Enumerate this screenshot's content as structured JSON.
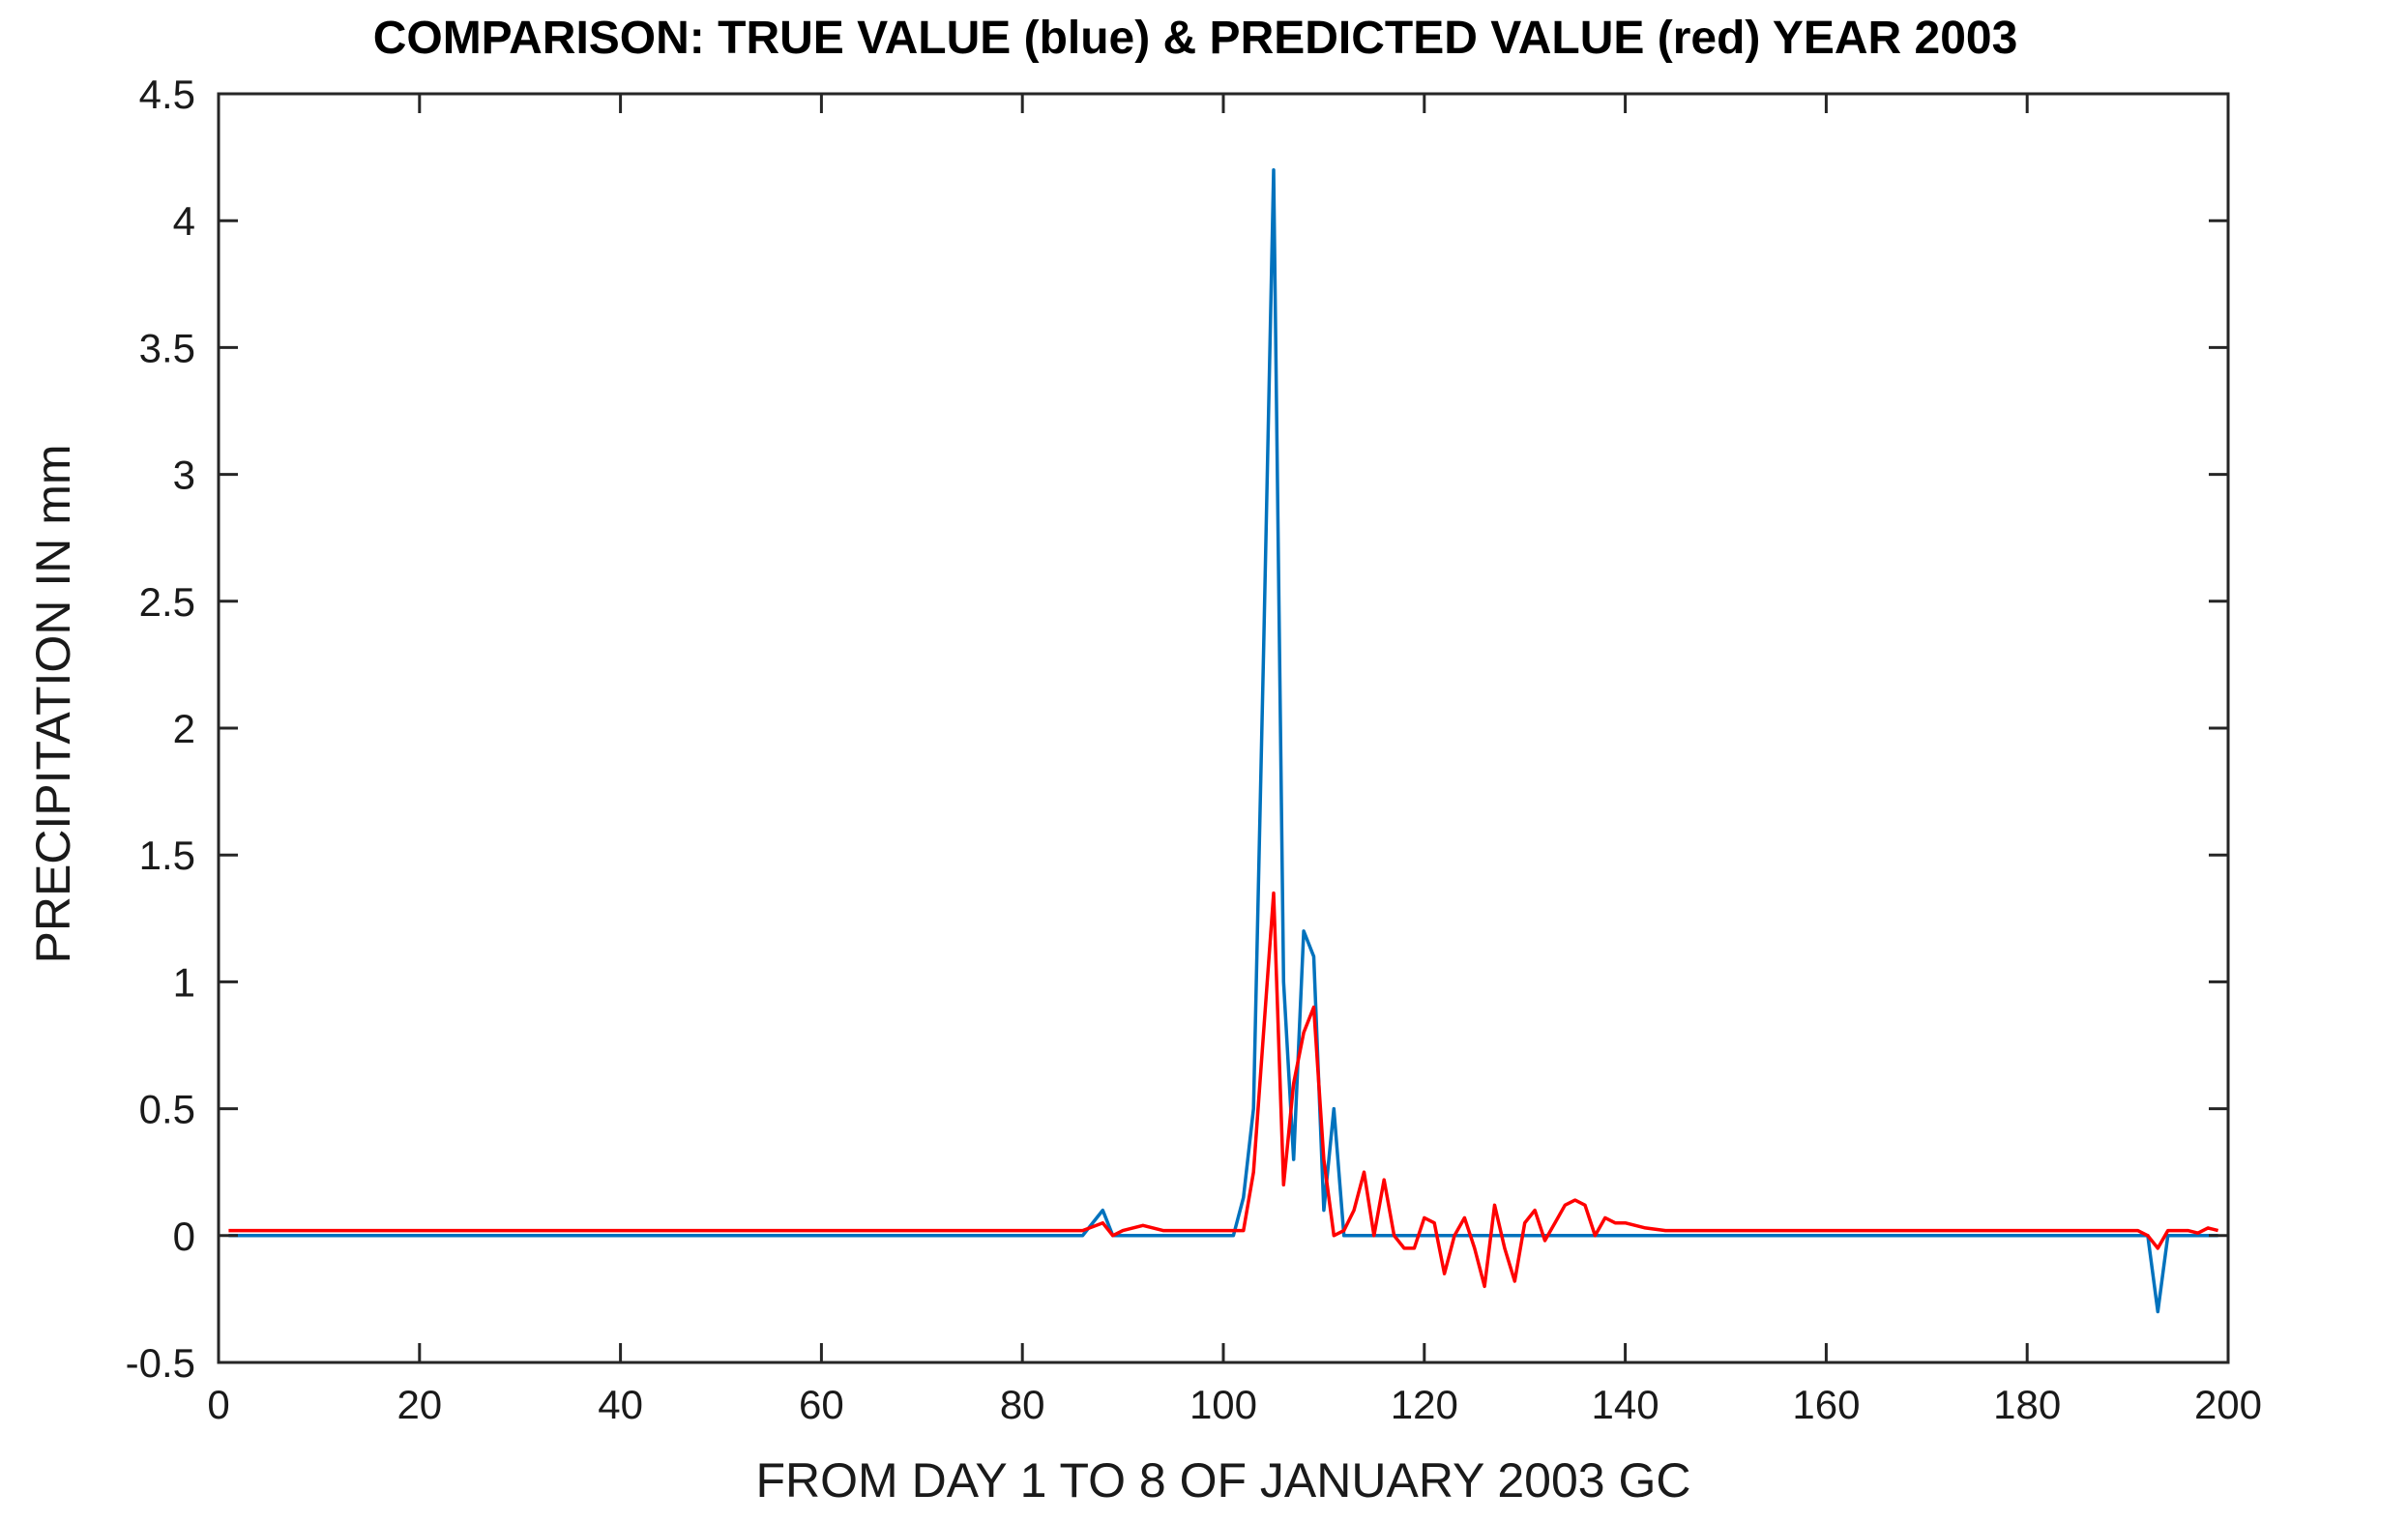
{
  "chart_data": {
    "type": "line",
    "title": "COMPARISON: TRUE VALUE (blue) & PREDICTED VALUE (red) YEAR 2003",
    "xlabel": "FROM DAY 1 TO 8 OF JANUARY 2003 GC",
    "ylabel": "PRECIPITATION IN mm",
    "xlim": [
      0,
      200
    ],
    "ylim": [
      -0.5,
      4.5
    ],
    "xticks": [
      "0",
      "20",
      "40",
      "60",
      "80",
      "100",
      "120",
      "140",
      "160",
      "180",
      "200"
    ],
    "yticks": [
      "-0.5",
      "0",
      "0.5",
      "1",
      "1.5",
      "2",
      "2.5",
      "3",
      "3.5",
      "4",
      "4.5"
    ],
    "grid": false,
    "legend": "none",
    "series": [
      {
        "color": "#0072BD",
        "points": [
          [
            1,
            0.0
          ],
          [
            86,
            0.0
          ],
          [
            88,
            0.1
          ],
          [
            89,
            0.0
          ],
          [
            101,
            0.0
          ],
          [
            102,
            0.15
          ],
          [
            103,
            0.5
          ],
          [
            104,
            2.3
          ],
          [
            105,
            4.2
          ],
          [
            106,
            1.0
          ],
          [
            107,
            0.3
          ],
          [
            108,
            1.2
          ],
          [
            109,
            1.1
          ],
          [
            110,
            0.1
          ],
          [
            111,
            0.5
          ],
          [
            112,
            0.0
          ],
          [
            190,
            0.0
          ],
          [
            192,
            0.0
          ],
          [
            193,
            -0.3
          ],
          [
            194,
            0.0
          ],
          [
            199,
            0.0
          ]
        ]
      },
      {
        "color": "#FF0000",
        "points": [
          [
            1,
            0.02
          ],
          [
            86,
            0.02
          ],
          [
            88,
            0.05
          ],
          [
            89,
            0.0
          ],
          [
            90,
            0.02
          ],
          [
            92,
            0.04
          ],
          [
            94,
            0.02
          ],
          [
            102,
            0.02
          ],
          [
            103,
            0.25
          ],
          [
            104,
            0.8
          ],
          [
            105,
            1.35
          ],
          [
            106,
            0.2
          ],
          [
            107,
            0.6
          ],
          [
            108,
            0.8
          ],
          [
            109,
            0.9
          ],
          [
            110,
            0.3
          ],
          [
            111,
            0.0
          ],
          [
            112,
            0.02
          ],
          [
            113,
            0.1
          ],
          [
            114,
            0.25
          ],
          [
            115,
            0.0
          ],
          [
            116,
            0.22
          ],
          [
            117,
            0.0
          ],
          [
            118,
            -0.05
          ],
          [
            119,
            -0.05
          ],
          [
            120,
            0.07
          ],
          [
            121,
            0.05
          ],
          [
            122,
            -0.15
          ],
          [
            123,
            0.0
          ],
          [
            124,
            0.07
          ],
          [
            125,
            -0.05
          ],
          [
            126,
            -0.2
          ],
          [
            127,
            0.12
          ],
          [
            128,
            -0.05
          ],
          [
            129,
            -0.18
          ],
          [
            130,
            0.05
          ],
          [
            131,
            0.1
          ],
          [
            132,
            -0.02
          ],
          [
            133,
            0.05
          ],
          [
            134,
            0.12
          ],
          [
            135,
            0.14
          ],
          [
            136,
            0.12
          ],
          [
            137,
            0.0
          ],
          [
            138,
            0.07
          ],
          [
            139,
            0.05
          ],
          [
            140,
            0.05
          ],
          [
            141,
            0.04
          ],
          [
            142,
            0.03
          ],
          [
            144,
            0.02
          ],
          [
            191,
            0.02
          ],
          [
            192,
            0.0
          ],
          [
            193,
            -0.05
          ],
          [
            194,
            0.02
          ],
          [
            196,
            0.02
          ],
          [
            197,
            0.01
          ],
          [
            198,
            0.03
          ],
          [
            199,
            0.02
          ]
        ]
      }
    ]
  }
}
